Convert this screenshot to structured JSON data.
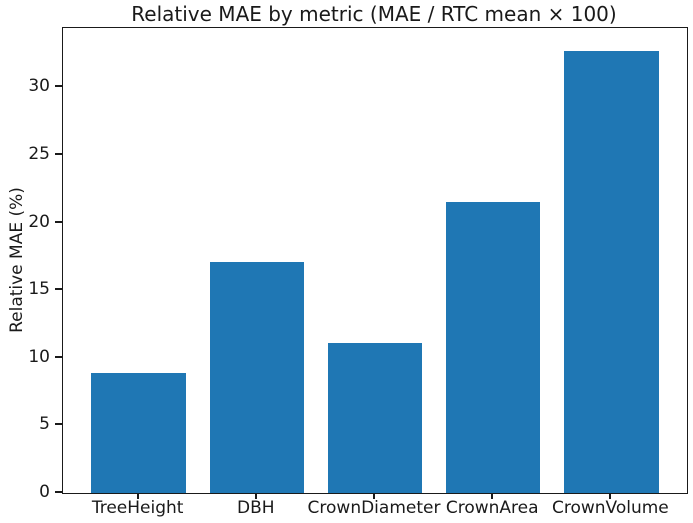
{
  "chart_data": {
    "type": "bar",
    "title": "Relative MAE by metric (MAE / RTC mean × 100)",
    "xlabel": "",
    "ylabel": "Relative MAE (%)",
    "categories": [
      "TreeHeight",
      "DBH",
      "CrownDiameter",
      "CrownArea",
      "CrownVolume"
    ],
    "values": [
      8.9,
      17.1,
      11.1,
      21.5,
      32.7
    ],
    "yticks": [
      0,
      5,
      10,
      15,
      20,
      25,
      30
    ],
    "ylim": [
      0,
      34.4
    ],
    "grid": false,
    "legend": false,
    "bar_color": "#1f77b4"
  },
  "colors": {
    "bar": "#1f77b4",
    "text": "#1a1a1a",
    "spine": "#1a1a1a",
    "background": "#ffffff"
  }
}
